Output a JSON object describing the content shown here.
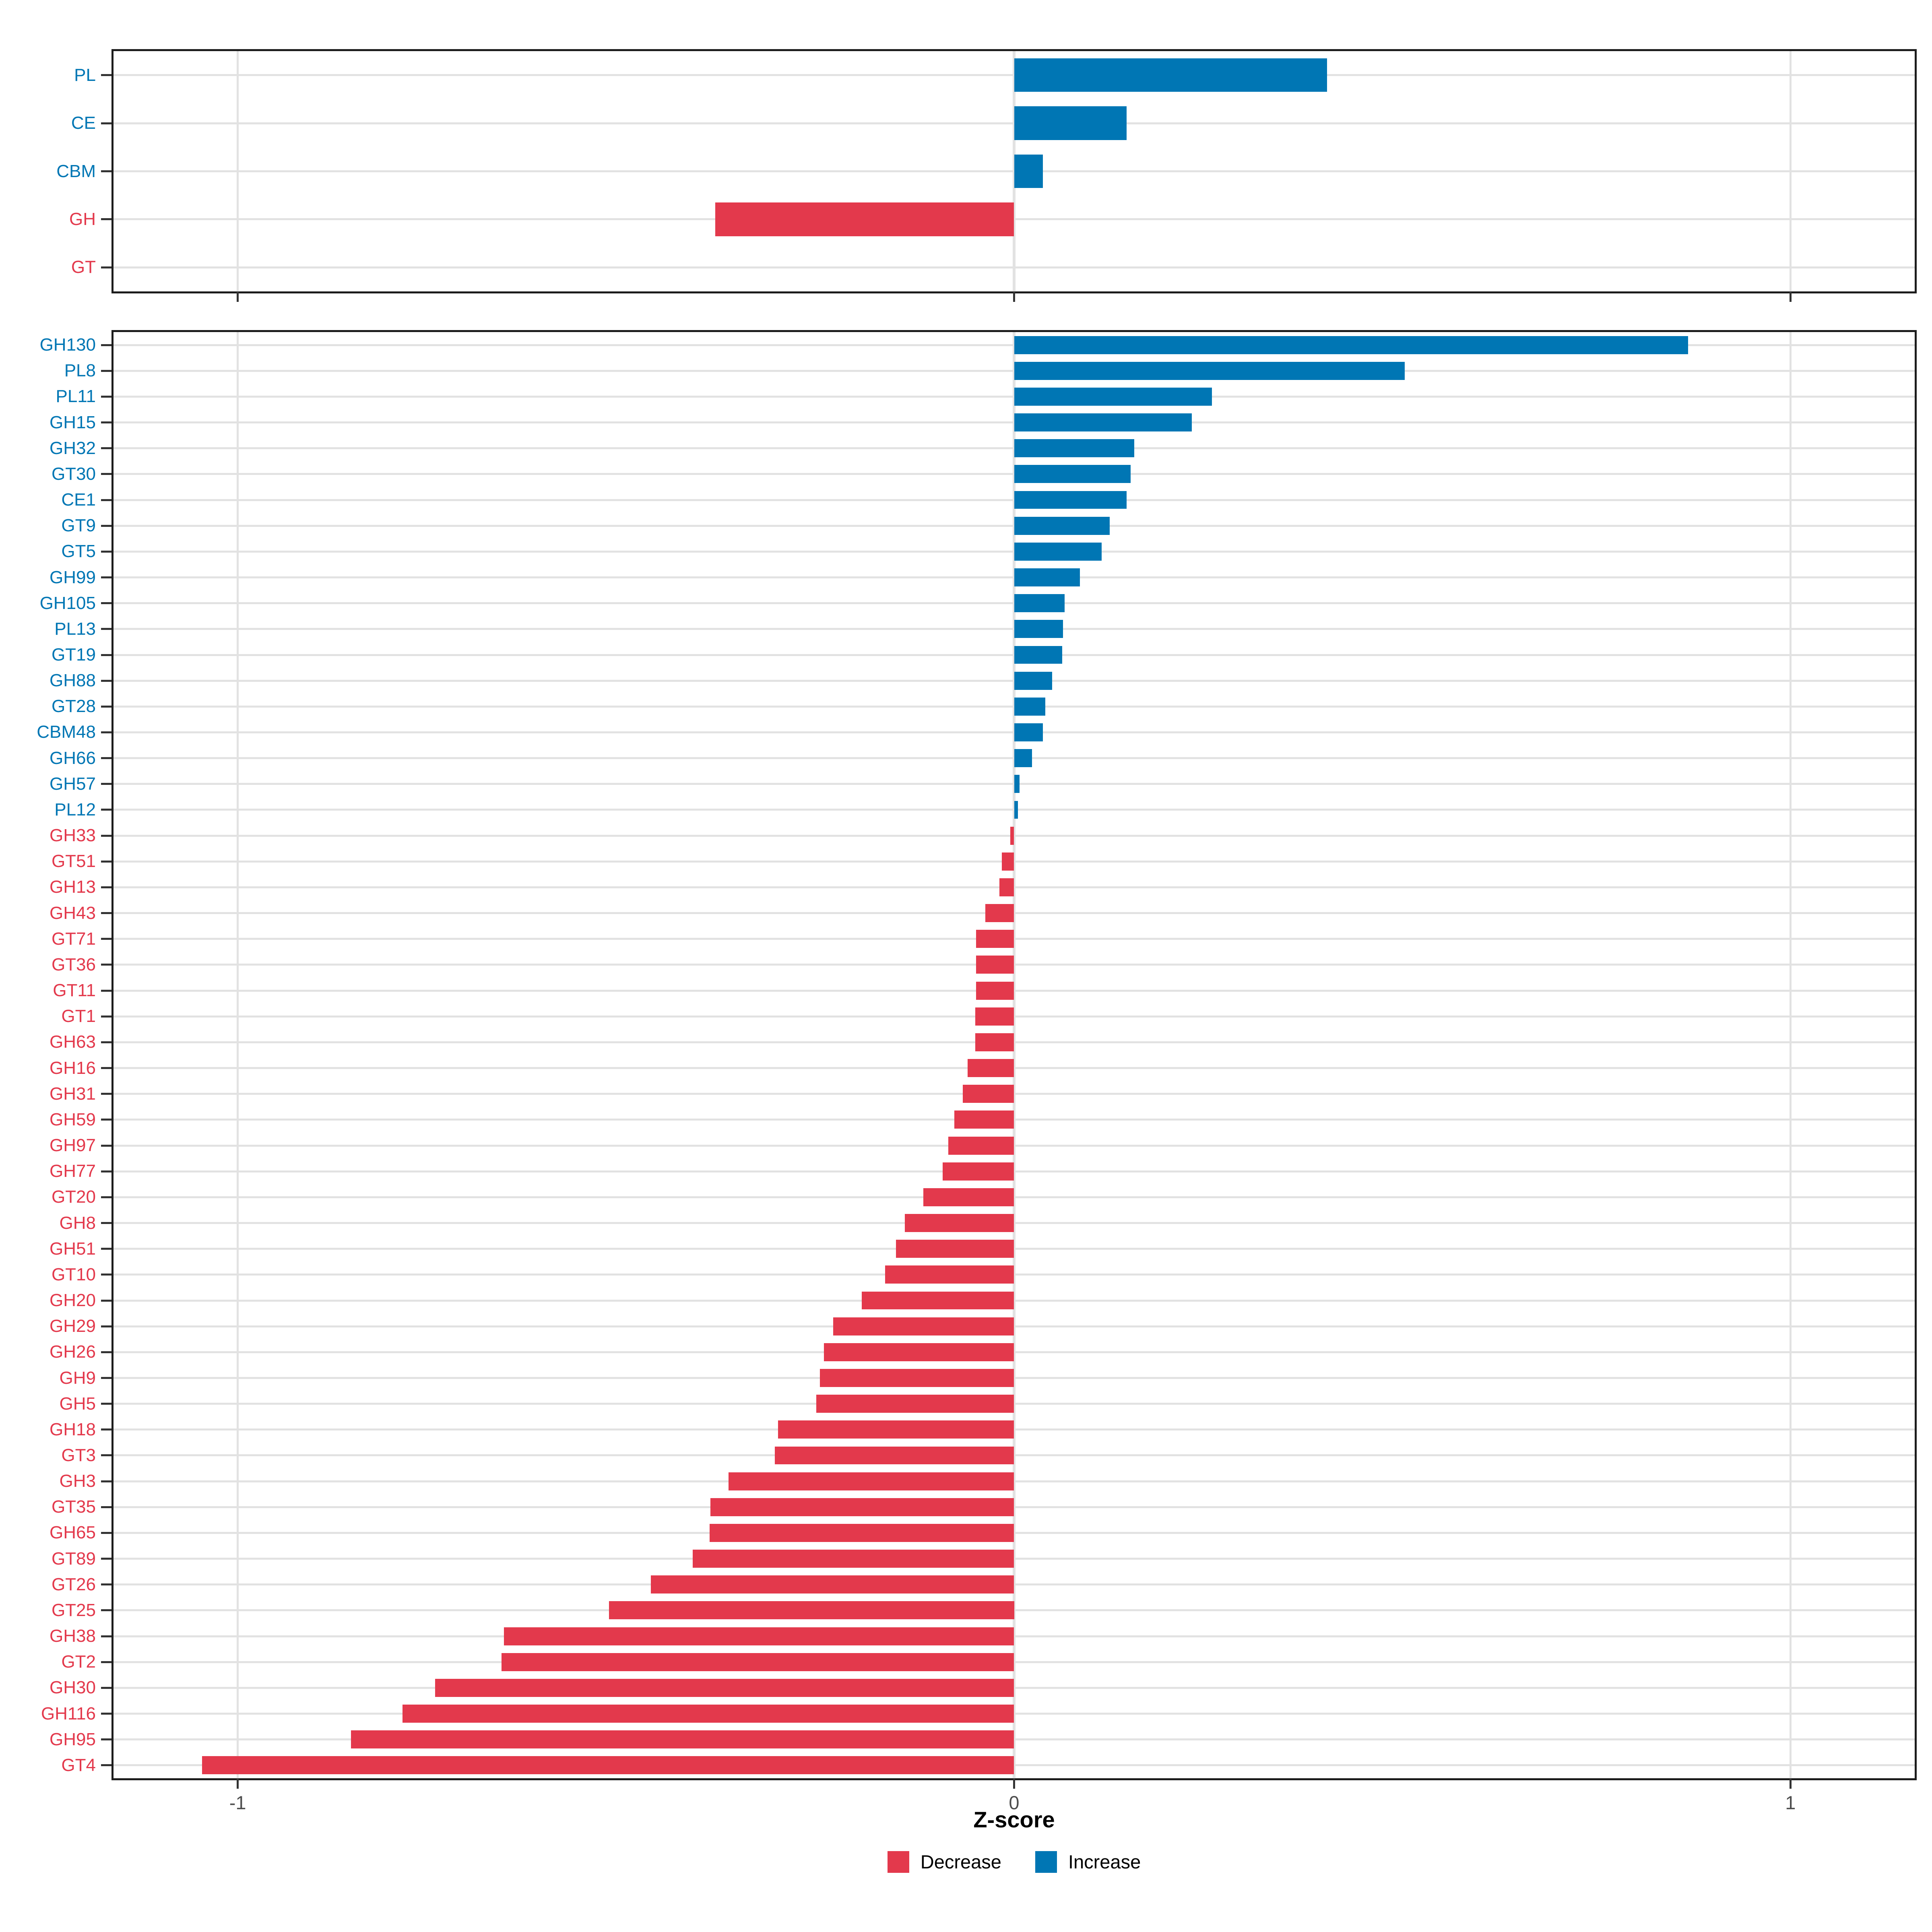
{
  "axis": {
    "xlabel": "Z-score",
    "xlim": [
      -1.16,
      1.16
    ],
    "tick_values": [
      -1,
      0,
      1
    ],
    "tick_labels": [
      "-1",
      "0",
      "1"
    ]
  },
  "legend": {
    "items": [
      {
        "label": "Decrease",
        "direction": "decrease",
        "color": "#e3394c"
      },
      {
        "label": "Increase",
        "direction": "increase",
        "color": "#0076b4"
      }
    ]
  },
  "colors": {
    "increase": "#0076b4",
    "decrease": "#e3394c",
    "grid": "#e2e2e2",
    "axis_text": "#4d4d4d",
    "tick": "#333333",
    "border": "#1d1d1d"
  },
  "chart_data": [
    {
      "id": "top",
      "type": "bar",
      "orientation": "horizontal",
      "title": "",
      "xlabel": "",
      "xlim": [
        -1.16,
        1.16
      ],
      "grid": true,
      "categories": [
        "PL",
        "CE",
        "CBM",
        "GH",
        "GT"
      ],
      "values": [
        0.403,
        0.145,
        0.037,
        -0.385,
        0.0
      ]
    },
    {
      "id": "bottom",
      "type": "bar",
      "orientation": "horizontal",
      "title": "",
      "xlabel": "Z-score",
      "xlim": [
        -1.16,
        1.16
      ],
      "grid": true,
      "categories": [
        "GH130",
        "PL8",
        "PL11",
        "GH15",
        "GH32",
        "GT30",
        "CE1",
        "GT9",
        "GT5",
        "GH99",
        "GH105",
        "PL13",
        "GT19",
        "GH88",
        "GT28",
        "CBM48",
        "GH66",
        "GH57",
        "PL12",
        "GH33",
        "GT51",
        "GH13",
        "GH43",
        "GT71",
        "GT36",
        "GT11",
        "GT1",
        "GH63",
        "GH16",
        "GH31",
        "GH59",
        "GH97",
        "GH77",
        "GT20",
        "GH8",
        "GH51",
        "GT10",
        "GH20",
        "GH29",
        "GH26",
        "GH9",
        "GH5",
        "GH18",
        "GT3",
        "GH3",
        "GT35",
        "GH65",
        "GT89",
        "GT26",
        "GT25",
        "GH38",
        "GT2",
        "GH30",
        "GH116",
        "GH95",
        "GT4"
      ],
      "values": [
        0.868,
        0.503,
        0.255,
        0.229,
        0.155,
        0.15,
        0.145,
        0.123,
        0.113,
        0.085,
        0.065,
        0.063,
        0.062,
        0.049,
        0.04,
        0.037,
        0.023,
        0.007,
        0.005,
        -0.005,
        -0.016,
        -0.019,
        -0.037,
        -0.049,
        -0.049,
        -0.049,
        -0.05,
        -0.05,
        -0.06,
        -0.066,
        -0.077,
        -0.085,
        -0.092,
        -0.117,
        -0.141,
        -0.152,
        -0.166,
        -0.196,
        -0.233,
        -0.245,
        -0.25,
        -0.255,
        -0.304,
        -0.308,
        -0.368,
        -0.391,
        -0.392,
        -0.414,
        -0.468,
        -0.522,
        -0.657,
        -0.66,
        -0.746,
        -0.788,
        -0.854,
        -1.046
      ]
    }
  ]
}
